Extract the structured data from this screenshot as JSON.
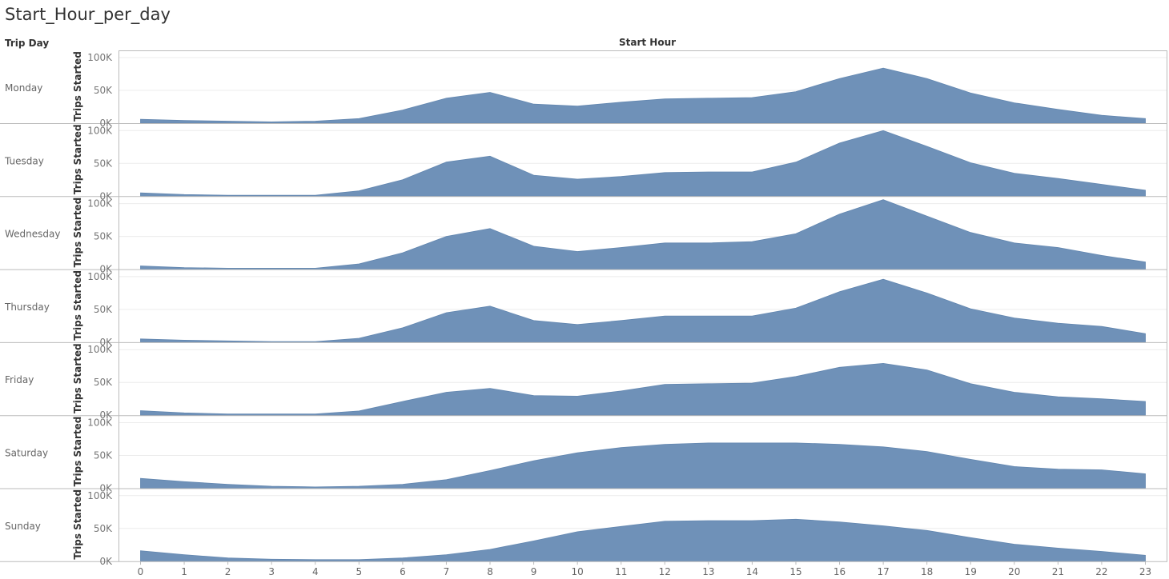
{
  "title": "Start_Hour_per_day",
  "headers": {
    "row": "Trip Day",
    "column": "Start Hour"
  },
  "chart_data": {
    "type": "area",
    "title": "Start_Hour_per_day",
    "xlabel": "Start Hour",
    "ylabel": "Trips Started",
    "row_field": "Trip Day",
    "x": [
      0,
      1,
      2,
      3,
      4,
      5,
      6,
      7,
      8,
      9,
      10,
      11,
      12,
      13,
      14,
      15,
      16,
      17,
      18,
      19,
      20,
      21,
      22,
      23
    ],
    "x_tick_labels": [
      "0",
      "1",
      "2",
      "3",
      "4",
      "5",
      "6",
      "7",
      "8",
      "9",
      "10",
      "11",
      "12",
      "13",
      "14",
      "15",
      "16",
      "17",
      "18",
      "19",
      "20",
      "21",
      "22",
      "23"
    ],
    "ylim": [
      0,
      100000
    ],
    "y_ticks": [
      0,
      50000,
      100000
    ],
    "y_tick_labels": [
      "0K",
      "50K",
      "100K"
    ],
    "grid": true,
    "color": "#6f91b8",
    "panels": [
      {
        "name": "Monday",
        "values": [
          6000,
          4000,
          3000,
          2000,
          3000,
          7000,
          20000,
          38000,
          47000,
          29000,
          26000,
          32000,
          37000,
          38000,
          39000,
          48000,
          68000,
          84000,
          68000,
          46000,
          31000,
          21000,
          12000,
          7000
        ]
      },
      {
        "name": "Tuesday",
        "values": [
          5000,
          2500,
          1500,
          1500,
          1500,
          8000,
          25000,
          52000,
          61000,
          32000,
          26000,
          30000,
          36000,
          37000,
          37000,
          52000,
          81000,
          100000,
          76000,
          51000,
          35000,
          27000,
          18000,
          9000
        ]
      },
      {
        "name": "Wednesday",
        "values": [
          5000,
          2500,
          1500,
          1500,
          1500,
          8000,
          25000,
          50000,
          62000,
          35000,
          27000,
          33000,
          40000,
          40000,
          42000,
          54000,
          84000,
          106000,
          81000,
          56000,
          40000,
          33000,
          21000,
          11000
        ]
      },
      {
        "name": "Thursday",
        "values": [
          5000,
          3000,
          2000,
          1000,
          1000,
          6000,
          22000,
          45000,
          55000,
          33000,
          27000,
          33000,
          40000,
          40000,
          40000,
          52000,
          77000,
          96000,
          75000,
          51000,
          37000,
          29000,
          24000,
          13000
        ]
      },
      {
        "name": "Friday",
        "values": [
          7000,
          3500,
          2000,
          2000,
          2000,
          6500,
          21000,
          35000,
          41000,
          30000,
          29000,
          37000,
          47000,
          48000,
          49000,
          59000,
          73000,
          79000,
          69000,
          48000,
          35000,
          28000,
          25000,
          21000
        ]
      },
      {
        "name": "Saturday",
        "values": [
          15000,
          10000,
          6000,
          3000,
          2000,
          3000,
          6000,
          13000,
          27000,
          42000,
          54000,
          62000,
          67000,
          69000,
          69000,
          69000,
          67000,
          63000,
          56000,
          44000,
          33000,
          29000,
          28000,
          22000
        ]
      },
      {
        "name": "Sunday",
        "values": [
          16000,
          10000,
          5000,
          3000,
          2500,
          2500,
          5000,
          10000,
          18000,
          31000,
          45000,
          53000,
          61000,
          62000,
          62000,
          64000,
          60000,
          54000,
          47000,
          36000,
          26000,
          20000,
          15000,
          9000
        ]
      }
    ]
  }
}
